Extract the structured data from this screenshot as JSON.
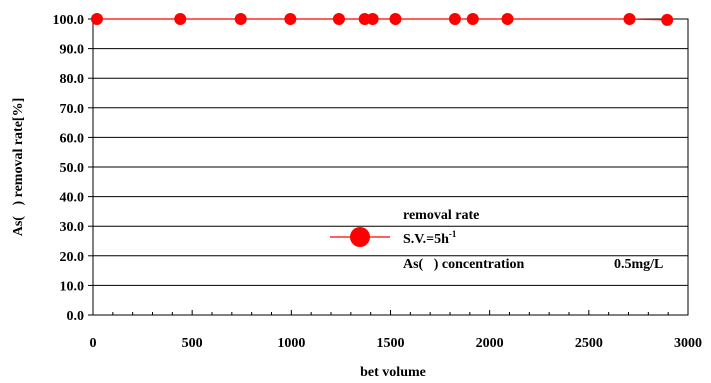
{
  "chart_data": {
    "type": "line",
    "title": "",
    "xlabel": "bet volume",
    "ylabel": "As(   ) removal rate[%]",
    "xlim": [
      0,
      3000
    ],
    "ylim": [
      0,
      100
    ],
    "x_ticks": [
      "0",
      "500",
      "1000",
      "1500",
      "2000",
      "2500",
      "3000"
    ],
    "y_ticks": [
      "0.0",
      "10.0",
      "20.0",
      "30.0",
      "40.0",
      "50.0",
      "60.0",
      "70.0",
      "80.0",
      "90.0",
      "100.0"
    ],
    "grid": "horizontal",
    "legend_position": "bottom-center",
    "series": [
      {
        "name": "removal rate",
        "color": "#ff0000",
        "marker": "circle",
        "points": [
          {
            "x": 20,
            "y": 100
          },
          {
            "x": 440,
            "y": 100
          },
          {
            "x": 745,
            "y": 100
          },
          {
            "x": 995,
            "y": 100
          },
          {
            "x": 1240,
            "y": 100
          },
          {
            "x": 1370,
            "y": 100
          },
          {
            "x": 1410,
            "y": 100
          },
          {
            "x": 1525,
            "y": 100
          },
          {
            "x": 1825,
            "y": 100
          },
          {
            "x": 1915,
            "y": 100
          },
          {
            "x": 2090,
            "y": 100
          },
          {
            "x": 2705,
            "y": 100
          },
          {
            "x": 2895,
            "y": 99.7
          }
        ]
      }
    ],
    "legend": {
      "title": "removal rate",
      "line1_prefix": "S.V.=5h",
      "line1_sup": "-1",
      "line2_left": "As(   ) concentration",
      "line2_right": "0.5mg/L"
    }
  }
}
